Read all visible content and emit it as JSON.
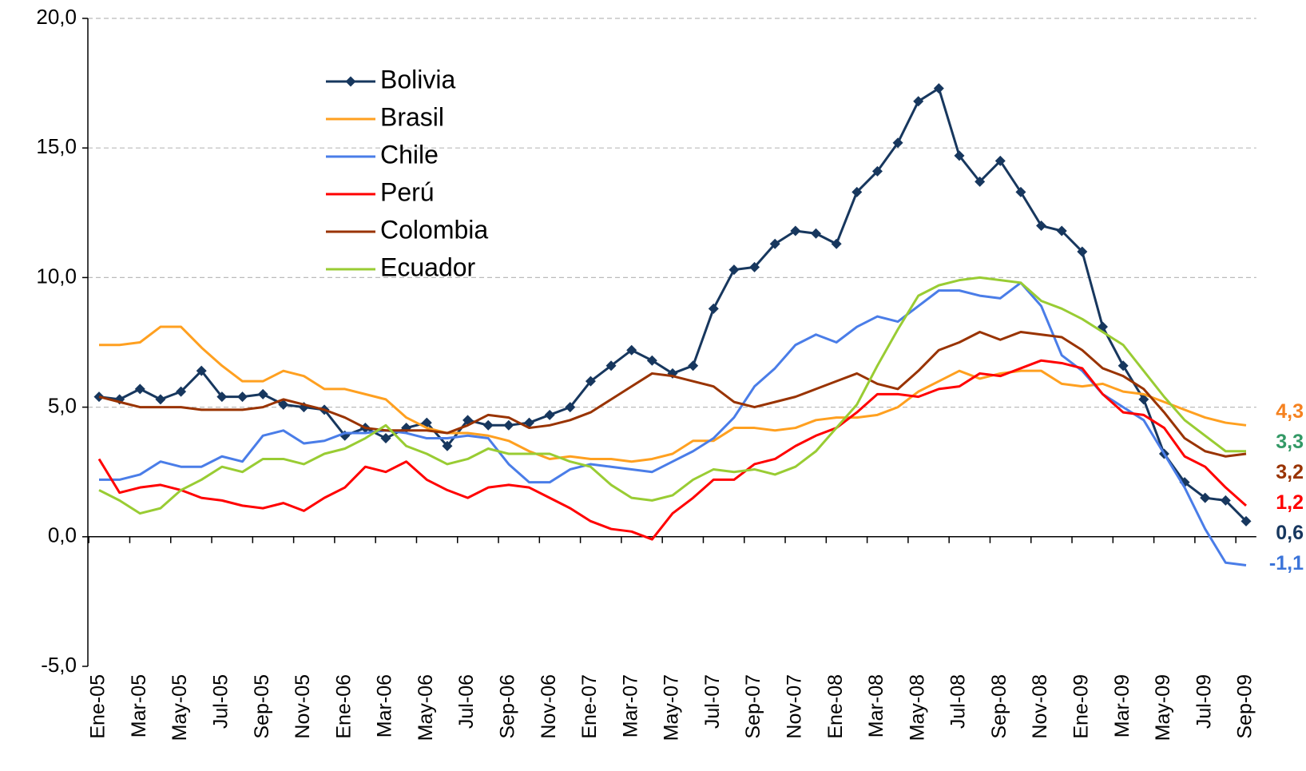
{
  "chart_data": {
    "type": "line",
    "categories": [
      "Ene-05",
      null,
      "Mar-05",
      null,
      "May-05",
      null,
      "Jul-05",
      null,
      "Sep-05",
      null,
      "Nov-05",
      null,
      "Ene-06",
      null,
      "Mar-06",
      null,
      "May-06",
      null,
      "Jul-06",
      null,
      "Sep-06",
      null,
      "Nov-06",
      null,
      "Ene-07",
      null,
      "Mar-07",
      null,
      "May-07",
      null,
      "Jul-07",
      null,
      "Sep-07",
      null,
      "Nov-07",
      null,
      "Ene-08",
      null,
      "Mar-08",
      null,
      "May-08",
      null,
      "Jul-08",
      null,
      "Sep-08",
      null,
      "Nov-08",
      null,
      "Ene-09",
      null,
      "Mar-09",
      null,
      "May-09",
      null,
      "Jul-09",
      null,
      "Sep-09"
    ],
    "ylim": [
      -5,
      20
    ],
    "yticks": [
      {
        "value": -5,
        "label": "-5,0"
      },
      {
        "value": 0,
        "label": "0,0"
      },
      {
        "value": 5,
        "label": "5,0"
      },
      {
        "value": 10,
        "label": "10,0"
      },
      {
        "value": 15,
        "label": "15,0"
      },
      {
        "value": 20,
        "label": "20,0"
      }
    ],
    "grid": true,
    "legend": "upper left",
    "series": [
      {
        "name": "Bolivia",
        "color": "#17375e",
        "marker": "diamond",
        "label_color": "#17375e",
        "values": [
          5.4,
          5.3,
          5.7,
          5.3,
          5.6,
          6.4,
          5.4,
          5.4,
          5.5,
          5.1,
          5.0,
          4.9,
          3.9,
          4.2,
          3.8,
          4.2,
          4.4,
          3.5,
          4.5,
          4.3,
          4.3,
          4.4,
          4.7,
          5.0,
          6.0,
          6.6,
          7.2,
          6.8,
          6.3,
          6.6,
          8.8,
          10.3,
          10.4,
          11.3,
          11.8,
          11.7,
          11.3,
          13.3,
          14.1,
          15.2,
          16.8,
          17.3,
          14.7,
          13.7,
          14.5,
          13.3,
          12.0,
          11.8,
          11.0,
          8.1,
          6.6,
          5.3,
          3.2,
          2.1,
          1.5,
          1.4,
          0.6
        ],
        "value_labels": [
          null,
          null,
          null,
          null,
          null,
          null,
          null,
          null,
          null,
          null,
          null,
          null,
          null,
          null,
          null,
          null,
          null,
          null,
          null,
          null,
          null,
          null,
          null,
          null,
          null,
          null,
          null,
          null,
          null,
          null,
          null,
          null,
          null,
          null,
          null,
          null,
          null,
          null,
          null,
          null,
          null,
          null,
          null,
          null,
          null,
          null,
          null,
          null,
          null,
          null,
          null,
          null,
          null,
          null,
          null,
          null,
          "0,6"
        ]
      },
      {
        "name": "Brasil",
        "color": "#ffa020",
        "label_color": "#f58220",
        "values": [
          7.4,
          7.4,
          7.5,
          8.1,
          8.1,
          7.3,
          6.6,
          6.0,
          6.0,
          6.4,
          6.2,
          5.7,
          5.7,
          5.5,
          5.3,
          4.6,
          4.2,
          4.0,
          4.0,
          3.9,
          3.7,
          3.3,
          3.0,
          3.1,
          3.0,
          3.0,
          2.9,
          3.0,
          3.2,
          3.7,
          3.7,
          4.2,
          4.2,
          4.1,
          4.2,
          4.5,
          4.6,
          4.6,
          4.7,
          5.0,
          5.6,
          6.0,
          6.4,
          6.1,
          6.3,
          6.4,
          6.4,
          5.9,
          5.8,
          5.9,
          5.6,
          5.5,
          5.2,
          4.9,
          4.6,
          4.4,
          4.3
        ],
        "value_labels": [
          null,
          null,
          null,
          null,
          null,
          null,
          null,
          null,
          null,
          null,
          null,
          null,
          null,
          null,
          null,
          null,
          null,
          null,
          null,
          null,
          null,
          null,
          null,
          null,
          null,
          null,
          null,
          null,
          null,
          null,
          null,
          null,
          null,
          null,
          null,
          null,
          null,
          null,
          null,
          null,
          null,
          null,
          null,
          null,
          null,
          null,
          null,
          null,
          null,
          null,
          null,
          null,
          null,
          null,
          null,
          null,
          "4,3"
        ]
      },
      {
        "name": "Chile",
        "color": "#4a7de8",
        "label_color": "#3b74d9",
        "values": [
          2.2,
          2.2,
          2.4,
          2.9,
          2.7,
          2.7,
          3.1,
          2.9,
          3.9,
          4.1,
          3.6,
          3.7,
          4.0,
          4.0,
          4.1,
          4.0,
          3.8,
          3.8,
          3.9,
          3.8,
          2.8,
          2.1,
          2.1,
          2.6,
          2.8,
          2.7,
          2.6,
          2.5,
          2.9,
          3.3,
          3.8,
          4.6,
          5.8,
          6.5,
          7.4,
          7.8,
          7.5,
          8.1,
          8.5,
          8.3,
          8.9,
          9.5,
          9.5,
          9.3,
          9.2,
          9.8,
          8.9,
          7.0,
          6.4,
          5.5,
          5.0,
          4.5,
          3.2,
          1.9,
          0.3,
          -1.0,
          -1.1
        ],
        "value_labels": [
          null,
          null,
          null,
          null,
          null,
          null,
          null,
          null,
          null,
          null,
          null,
          null,
          null,
          null,
          null,
          null,
          null,
          null,
          null,
          null,
          null,
          null,
          null,
          null,
          null,
          null,
          null,
          null,
          null,
          null,
          null,
          null,
          null,
          null,
          null,
          null,
          null,
          null,
          null,
          null,
          null,
          null,
          null,
          null,
          null,
          null,
          null,
          null,
          null,
          null,
          null,
          null,
          null,
          null,
          null,
          null,
          "-1,1"
        ]
      },
      {
        "name": "Perú",
        "color": "#ff0000",
        "label_color": "#ff0000",
        "values": [
          3.0,
          1.7,
          1.9,
          2.0,
          1.8,
          1.5,
          1.4,
          1.2,
          1.1,
          1.3,
          1.0,
          1.5,
          1.9,
          2.7,
          2.5,
          2.9,
          2.2,
          1.8,
          1.5,
          1.9,
          2.0,
          1.9,
          1.5,
          1.1,
          0.6,
          0.3,
          0.2,
          -0.1,
          0.9,
          1.5,
          2.2,
          2.2,
          2.8,
          3.0,
          3.5,
          3.9,
          4.2,
          4.8,
          5.5,
          5.5,
          5.4,
          5.7,
          5.8,
          6.3,
          6.2,
          6.5,
          6.8,
          6.7,
          6.5,
          5.5,
          4.8,
          4.7,
          4.2,
          3.1,
          2.7,
          1.9,
          1.2
        ],
        "value_labels": [
          null,
          null,
          null,
          null,
          null,
          null,
          null,
          null,
          null,
          null,
          null,
          null,
          null,
          null,
          null,
          null,
          null,
          null,
          null,
          null,
          null,
          null,
          null,
          null,
          null,
          null,
          null,
          null,
          null,
          null,
          null,
          null,
          null,
          null,
          null,
          null,
          null,
          null,
          null,
          null,
          null,
          null,
          null,
          null,
          null,
          null,
          null,
          null,
          null,
          null,
          null,
          null,
          null,
          null,
          null,
          null,
          "1,2"
        ]
      },
      {
        "name": "Colombia",
        "color": "#993300",
        "label_color": "#993300",
        "values": [
          5.4,
          5.2,
          5.0,
          5.0,
          5.0,
          4.9,
          4.9,
          4.9,
          5.0,
          5.3,
          5.1,
          4.9,
          4.6,
          4.2,
          4.1,
          4.1,
          4.1,
          4.0,
          4.3,
          4.7,
          4.6,
          4.2,
          4.3,
          4.5,
          4.8,
          5.3,
          5.8,
          6.3,
          6.2,
          6.0,
          5.8,
          5.2,
          5.0,
          5.2,
          5.4,
          5.7,
          6.0,
          6.3,
          5.9,
          5.7,
          6.4,
          7.2,
          7.5,
          7.9,
          7.6,
          7.9,
          7.8,
          7.7,
          7.2,
          6.5,
          6.2,
          5.7,
          4.8,
          3.8,
          3.3,
          3.1,
          3.2
        ],
        "value_labels": [
          null,
          null,
          null,
          null,
          null,
          null,
          null,
          null,
          null,
          null,
          null,
          null,
          null,
          null,
          null,
          null,
          null,
          null,
          null,
          null,
          null,
          null,
          null,
          null,
          null,
          null,
          null,
          null,
          null,
          null,
          null,
          null,
          null,
          null,
          null,
          null,
          null,
          null,
          null,
          null,
          null,
          null,
          null,
          null,
          null,
          null,
          null,
          null,
          null,
          null,
          null,
          null,
          null,
          null,
          null,
          null,
          "3,2"
        ]
      },
      {
        "name": "Ecuador",
        "color": "#99cc33",
        "label_color": "#339966",
        "values": [
          1.8,
          1.4,
          0.9,
          1.1,
          1.8,
          2.2,
          2.7,
          2.5,
          3.0,
          3.0,
          2.8,
          3.2,
          3.4,
          3.8,
          4.3,
          3.5,
          3.2,
          2.8,
          3.0,
          3.4,
          3.2,
          3.2,
          3.2,
          2.9,
          2.7,
          2.0,
          1.5,
          1.4,
          1.6,
          2.2,
          2.6,
          2.5,
          2.6,
          2.4,
          2.7,
          3.3,
          4.2,
          5.1,
          6.6,
          8.0,
          9.3,
          9.7,
          9.9,
          10.0,
          9.9,
          9.8,
          9.1,
          8.8,
          8.4,
          7.9,
          7.4,
          6.4,
          5.4,
          4.5,
          3.9,
          3.3,
          3.3
        ],
        "value_labels": [
          null,
          null,
          null,
          null,
          null,
          null,
          null,
          null,
          null,
          null,
          null,
          null,
          null,
          null,
          null,
          null,
          null,
          null,
          null,
          null,
          null,
          null,
          null,
          null,
          null,
          null,
          null,
          null,
          null,
          null,
          null,
          null,
          null,
          null,
          null,
          null,
          null,
          null,
          null,
          null,
          null,
          null,
          null,
          null,
          null,
          null,
          null,
          null,
          null,
          null,
          null,
          null,
          null,
          null,
          null,
          null,
          "3,3"
        ]
      }
    ]
  }
}
